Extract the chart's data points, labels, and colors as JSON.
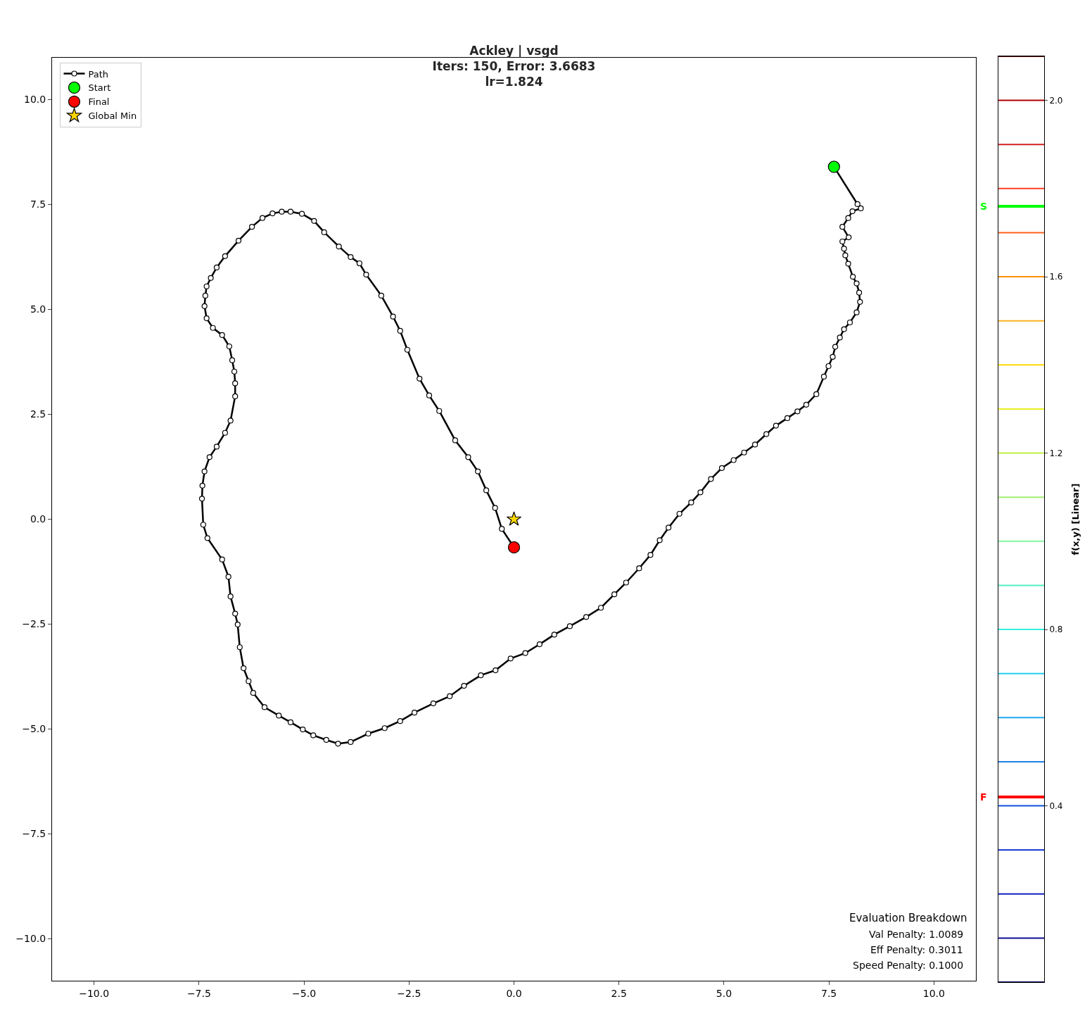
{
  "chart_data": [
    {
      "type": "line",
      "title": "Ackley | vsgd\nIters: 150, Error: 3.6683\nlr=1.824",
      "xlim": [
        -11,
        11
      ],
      "ylim": [
        -11,
        11
      ],
      "xticks": [
        {
          "value": -10,
          "label": "−10.0"
        },
        {
          "value": -7.5,
          "label": "−7.5"
        },
        {
          "value": -5,
          "label": "−5.0"
        },
        {
          "value": -2.5,
          "label": "−2.5"
        },
        {
          "value": 0,
          "label": "0.0"
        },
        {
          "value": 2.5,
          "label": "2.5"
        },
        {
          "value": 5,
          "label": "5.0"
        },
        {
          "value": 7.5,
          "label": "7.5"
        },
        {
          "value": 10,
          "label": "10.0"
        }
      ],
      "yticks": [
        {
          "value": -10,
          "label": "−10.0"
        },
        {
          "value": -7.5,
          "label": "−7.5"
        },
        {
          "value": -5,
          "label": "−5.0"
        },
        {
          "value": -2.5,
          "label": "−2.5"
        },
        {
          "value": 0,
          "label": "0.0"
        },
        {
          "value": 2.5,
          "label": "2.5"
        },
        {
          "value": 5,
          "label": "5.0"
        },
        {
          "value": 7.5,
          "label": "7.5"
        },
        {
          "value": 10,
          "label": "10.0"
        }
      ],
      "legend": "top left",
      "marker": "circle",
      "line_style": "solid",
      "series": [
        {
          "name": "Path",
          "color": "#000000",
          "x": [
            7.62,
            8.18,
            8.26,
            8.06,
            7.96,
            7.82,
            7.97,
            7.82,
            7.86,
            7.89,
            7.96,
            8.07,
            8.16,
            8.22,
            8.24,
            8.16,
            8.0,
            7.86,
            7.76,
            7.65,
            7.59,
            7.49,
            7.38,
            7.2,
            6.96,
            6.75,
            6.51,
            6.24,
            6.01,
            5.74,
            5.48,
            5.23,
            4.95,
            4.69,
            4.44,
            4.22,
            3.94,
            3.68,
            3.47,
            3.25,
            2.98,
            2.67,
            2.39,
            2.07,
            1.72,
            1.33,
            0.96,
            0.61,
            0.27,
            -0.08,
            -0.44,
            -0.79,
            -1.19,
            -1.53,
            -1.92,
            -2.37,
            -2.71,
            -3.08,
            -3.47,
            -3.89,
            -4.19,
            -4.47,
            -4.78,
            -5.03,
            -5.32,
            -5.6,
            -5.94,
            -6.21,
            -6.32,
            -6.44,
            -6.53,
            -6.58,
            -6.64,
            -6.75,
            -6.8,
            -6.95,
            -7.3,
            -7.4,
            -7.43,
            -7.42,
            -7.37,
            -7.25,
            -7.08,
            -6.88,
            -6.75,
            -6.64,
            -6.64,
            -6.66,
            -6.71,
            -6.78,
            -6.95,
            -7.17,
            -7.32,
            -7.37,
            -7.35,
            -7.32,
            -7.22,
            -7.08,
            -6.88,
            -6.56,
            -6.24,
            -5.99,
            -5.75,
            -5.53,
            -5.32,
            -5.05,
            -4.76,
            -4.52,
            -4.17,
            -3.89,
            -3.68,
            -3.52,
            -3.16,
            -2.88,
            -2.71,
            -2.54,
            -2.25,
            -2.02,
            -1.78,
            -1.4,
            -1.09,
            -0.86,
            -0.66,
            -0.45,
            -0.29,
            0.0
          ],
          "values": [
            8.4,
            7.51,
            7.41,
            7.34,
            7.18,
            6.97,
            6.72,
            6.62,
            6.45,
            6.29,
            6.09,
            5.78,
            5.62,
            5.4,
            5.18,
            4.93,
            4.69,
            4.53,
            4.33,
            4.11,
            3.87,
            3.65,
            3.4,
            2.98,
            2.73,
            2.57,
            2.41,
            2.23,
            2.03,
            1.78,
            1.59,
            1.41,
            1.22,
            0.96,
            0.64,
            0.4,
            0.13,
            -0.2,
            -0.5,
            -0.85,
            -1.17,
            -1.51,
            -1.79,
            -2.11,
            -2.33,
            -2.55,
            -2.75,
            -2.98,
            -3.19,
            -3.32,
            -3.6,
            -3.72,
            -3.97,
            -4.22,
            -4.39,
            -4.61,
            -4.81,
            -4.98,
            -5.11,
            -5.31,
            -5.35,
            -5.26,
            -5.15,
            -5.01,
            -4.84,
            -4.68,
            -4.48,
            -4.14,
            -3.86,
            -3.55,
            -3.05,
            -2.51,
            -2.25,
            -1.84,
            -1.37,
            -0.96,
            -0.45,
            -0.13,
            0.49,
            0.8,
            1.14,
            1.48,
            1.73,
            2.06,
            2.35,
            2.93,
            3.24,
            3.52,
            3.79,
            4.12,
            4.39,
            4.56,
            4.79,
            5.08,
            5.33,
            5.55,
            5.75,
            6.0,
            6.27,
            6.64,
            6.97,
            7.18,
            7.29,
            7.33,
            7.33,
            7.28,
            7.11,
            6.84,
            6.5,
            6.25,
            6.1,
            5.83,
            5.33,
            4.83,
            4.49,
            4.04,
            3.35,
            2.95,
            2.58,
            1.88,
            1.48,
            1.14,
            0.69,
            0.27,
            -0.23,
            -0.67
          ]
        },
        {
          "name": "Start",
          "type": "scatter",
          "color": "#00ff00",
          "x": [
            7.62
          ],
          "values": [
            8.4
          ]
        },
        {
          "name": "Final",
          "type": "scatter",
          "color": "#ff0000",
          "x": [
            0.0
          ],
          "values": [
            -0.67
          ]
        },
        {
          "name": "Global Min",
          "type": "scatter",
          "marker": "star",
          "color": "#ffd700",
          "x": [
            0.0
          ],
          "values": [
            0.0
          ]
        }
      ],
      "annotations": [
        "Evaluation Breakdown",
        "Val Penalty: 1.0089",
        "Eff Penalty: 0.3011",
        "Speed Penalty: 0.1000"
      ]
    },
    {
      "type": "line",
      "categories": [
        null
      ],
      "ylabel": "f(x,y) [Linear]",
      "ylim": [
        0,
        2.1
      ],
      "yticks": [
        {
          "value": 0.4,
          "label": "0.4"
        },
        {
          "value": 0.8,
          "label": "0.8"
        },
        {
          "value": 1.2,
          "label": "1.2"
        },
        {
          "value": 1.6,
          "label": "1.6"
        },
        {
          "value": 2,
          "label": "2.0"
        }
      ],
      "ref_lines": [
        {
          "axis": "y",
          "value": 0,
          "color": "#000050"
        },
        {
          "axis": "y",
          "value": 0.1,
          "color": "#10109a"
        },
        {
          "axis": "y",
          "value": 0.2,
          "color": "#1020c0"
        },
        {
          "axis": "y",
          "value": 0.3,
          "color": "#1030d0"
        },
        {
          "axis": "y",
          "value": 0.4,
          "color": "#1050e0"
        },
        {
          "axis": "y",
          "value": 0.5,
          "color": "#2080e8"
        },
        {
          "axis": "y",
          "value": 0.6,
          "color": "#20a8f0"
        },
        {
          "axis": "y",
          "value": 0.7,
          "color": "#20d0f0"
        },
        {
          "axis": "y",
          "value": 0.8,
          "color": "#30f0e0"
        },
        {
          "axis": "y",
          "value": 0.9,
          "color": "#50f0c0"
        },
        {
          "axis": "y",
          "value": 1.0,
          "color": "#80f8a0"
        },
        {
          "axis": "y",
          "value": 1.1,
          "color": "#a0f070"
        },
        {
          "axis": "y",
          "value": 1.2,
          "color": "#c0f040"
        },
        {
          "axis": "y",
          "value": 1.3,
          "color": "#e8f020"
        },
        {
          "axis": "y",
          "value": 1.4,
          "color": "#ffd800"
        },
        {
          "axis": "y",
          "value": 1.5,
          "color": "#ffb020"
        },
        {
          "axis": "y",
          "value": 1.6,
          "color": "#ff9000"
        },
        {
          "axis": "y",
          "value": 1.7,
          "color": "#ff6020"
        },
        {
          "axis": "y",
          "value": 1.8,
          "color": "#ff4020"
        },
        {
          "axis": "y",
          "value": 1.9,
          "color": "#d42020"
        },
        {
          "axis": "y",
          "value": 2.0,
          "color": "#b00000"
        },
        {
          "axis": "y",
          "value": 2.1,
          "color": "#500000"
        },
        {
          "axis": "y",
          "value": 1.76,
          "label": "S",
          "color": "#00ff00"
        },
        {
          "axis": "y",
          "value": 0.42,
          "label": "F",
          "color": "#ff0000"
        }
      ]
    }
  ]
}
